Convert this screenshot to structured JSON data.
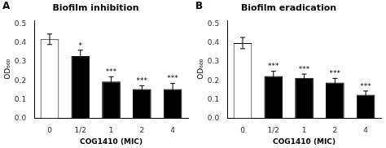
{
  "chart_data": [
    {
      "type": "bar",
      "title": "Biofilm inhibition",
      "panel_label": "A",
      "categories": [
        "0",
        "1/2",
        "1",
        "2",
        "4"
      ],
      "values": [
        0.42,
        0.33,
        0.195,
        0.155,
        0.155
      ],
      "errors": [
        0.028,
        0.032,
        0.026,
        0.018,
        0.03
      ],
      "colors": [
        "white",
        "black",
        "black",
        "black",
        "black"
      ],
      "sig_labels": [
        null,
        "*",
        "***",
        "***",
        "***"
      ],
      "xlabel": "COG1410 (MIC)",
      "ylabel": "OD₆₀₀",
      "ylim": [
        0.0,
        0.52
      ],
      "yticks": [
        {
          "value": 0.0,
          "label": "0.0"
        },
        0.1,
        0.2,
        0.3,
        0.4,
        0.5
      ],
      "grid": false
    },
    {
      "type": "bar",
      "title": "Biofilm eradication",
      "panel_label": "B",
      "categories": [
        "0",
        "1/2",
        "1",
        "2",
        "4"
      ],
      "values": [
        0.4,
        0.225,
        0.215,
        0.19,
        0.125
      ],
      "errors": [
        0.03,
        0.025,
        0.02,
        0.022,
        0.02
      ],
      "colors": [
        "white",
        "black",
        "black",
        "black",
        "black"
      ],
      "sig_labels": [
        null,
        "***",
        "***",
        "***",
        "***"
      ],
      "xlabel": "COG1410 (MIC)",
      "ylabel": "OD₆₀₀",
      "ylim": [
        0.0,
        0.52
      ],
      "yticks": [
        {
          "value": 0.0,
          "label": "0.0"
        },
        0.1,
        0.2,
        0.3,
        0.4,
        0.5
      ],
      "grid": false
    }
  ]
}
